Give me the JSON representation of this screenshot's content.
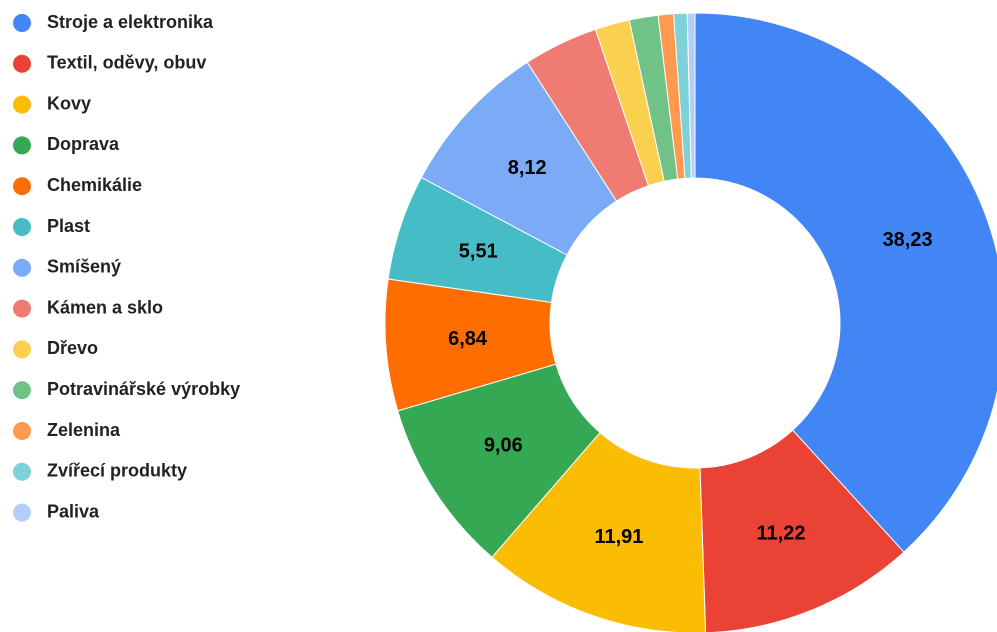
{
  "chart_data": {
    "type": "donut",
    "categories": [
      "Stroje a elektronika",
      "Textil, oděvy, obuv",
      "Kovy",
      "Doprava",
      "Chemikálie",
      "Plast",
      "Smíšený",
      "Kámen a sklo",
      "Dřevo",
      "Potravinářské výrobky",
      "Zelenina",
      "Zvířecí produkty",
      "Paliva"
    ],
    "values": [
      38.23,
      11.22,
      11.91,
      9.06,
      6.84,
      5.51,
      8.12,
      3.9,
      1.8,
      1.5,
      0.8,
      0.7,
      0.4
    ],
    "value_labels": [
      "38,23",
      "11,22",
      "11,91",
      "9,06",
      "6,84",
      "5,51",
      "8,12",
      null,
      null,
      null,
      null,
      null,
      null
    ],
    "colors": [
      "#4285f4",
      "#ea4335",
      "#fbbc04",
      "#34a853",
      "#ff6d01",
      "#46bdc6",
      "#7baaf7",
      "#f07b72",
      "#fcd04f",
      "#71c287",
      "#ff994d",
      "#7ed1d7",
      "#b3cefb"
    ],
    "legend": "left"
  }
}
